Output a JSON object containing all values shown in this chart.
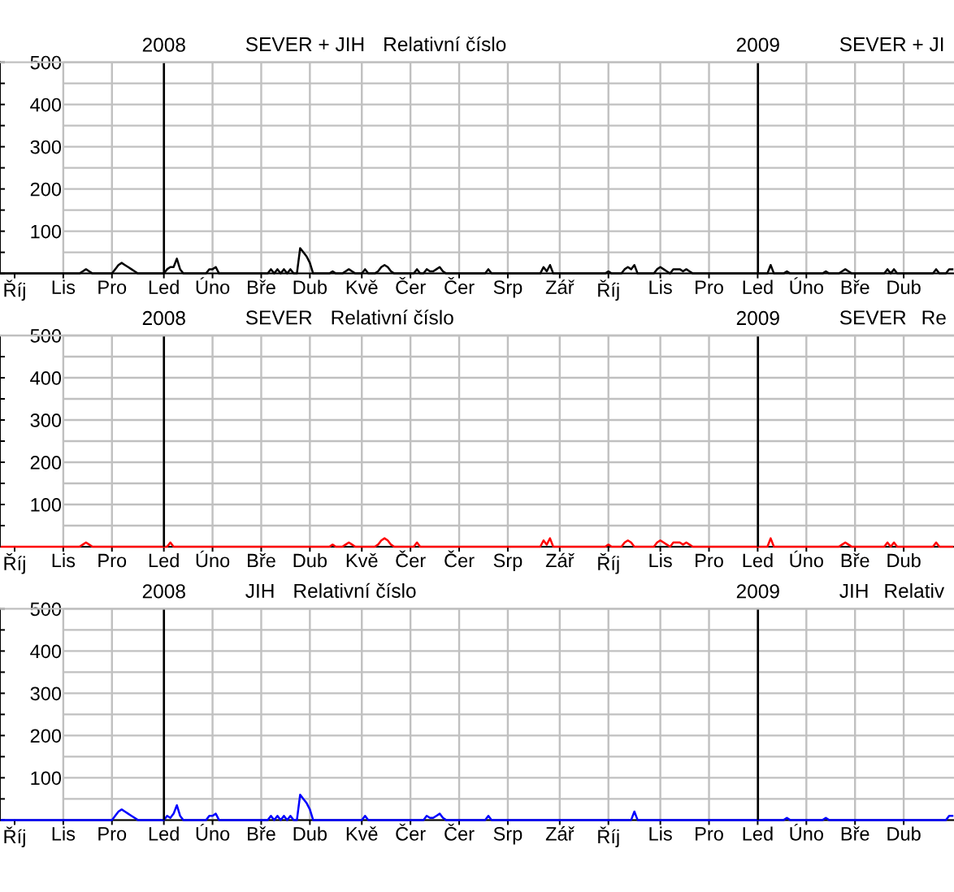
{
  "chart_data": [
    {
      "type": "line",
      "title": "SEVER + JIH",
      "subtitle": "Relativní číslo",
      "annotations": [
        "SEVER + JI"
      ],
      "color": "#000000",
      "categories": [
        null,
        null,
        null,
        null,
        "Říj",
        null,
        null,
        null,
        null,
        null,
        null,
        null,
        null,
        null,
        null,
        null,
        null,
        null,
        null,
        "Lis",
        null,
        null,
        null,
        null,
        null,
        null,
        null,
        null,
        null,
        null,
        null,
        null,
        null,
        null,
        "Pro",
        null,
        null,
        null,
        null,
        null,
        null,
        null,
        null,
        null,
        null,
        null,
        null,
        null,
        null,
        null,
        "Led",
        null,
        null,
        null,
        null,
        null,
        null,
        null,
        null,
        null,
        null,
        null,
        null,
        null,
        null,
        "Úno",
        null,
        null,
        null,
        null,
        null,
        null,
        null,
        null,
        null,
        null,
        null,
        null,
        null,
        null,
        "Bře",
        null,
        null,
        null,
        null,
        null,
        null,
        null,
        null,
        null,
        null,
        null,
        null,
        null,
        null,
        "Dub",
        null,
        null,
        null,
        null,
        null,
        null,
        null,
        null,
        null,
        null,
        null,
        null,
        null,
        null,
        null,
        "Kvě",
        null,
        null,
        null,
        null,
        null,
        null,
        null,
        null,
        null,
        null,
        null,
        null,
        null,
        null,
        "Čer",
        null,
        null,
        null,
        null,
        null,
        null,
        null,
        null,
        null,
        null,
        null,
        null,
        null,
        null,
        "Čer",
        null,
        null,
        null,
        null,
        null,
        null,
        null,
        null,
        null,
        null,
        null,
        null,
        null,
        null,
        "Srp",
        null,
        null,
        null,
        null,
        null,
        null,
        null,
        null,
        null,
        null,
        null,
        null,
        null,
        null,
        null,
        "Zář",
        null,
        null,
        null,
        null,
        null,
        null,
        null,
        null,
        null,
        null,
        null,
        null,
        null,
        null,
        "Říj",
        null,
        null,
        null,
        null,
        null,
        null,
        null,
        null,
        null,
        null,
        null,
        null,
        null,
        null,
        null,
        "Lis",
        null,
        null,
        null,
        null,
        null,
        null,
        null,
        null,
        null,
        null,
        null,
        null,
        null,
        null,
        "Pro",
        null,
        null,
        null,
        null,
        null,
        null,
        null,
        null,
        null,
        null,
        null,
        null,
        null,
        null,
        "Led",
        null,
        null,
        null,
        null,
        null,
        null,
        null,
        null,
        null,
        null,
        null,
        null,
        null,
        null,
        "Úno",
        null,
        null,
        null,
        null,
        null,
        null,
        null,
        null,
        null,
        null,
        null,
        null,
        null,
        null,
        "Bře",
        null,
        null,
        null,
        null,
        null,
        null,
        null,
        null,
        null,
        null,
        null,
        null,
        null,
        null,
        "Dub",
        null,
        null,
        null,
        null,
        null,
        null,
        null,
        null,
        null,
        null,
        null,
        null,
        null,
        null,
        null
      ],
      "values": [
        0,
        0,
        0,
        0,
        0,
        0,
        0,
        0,
        0,
        0,
        0,
        0,
        0,
        0,
        0,
        0,
        0,
        0,
        0,
        0,
        0,
        0,
        0,
        0,
        0,
        5,
        10,
        5,
        0,
        0,
        0,
        0,
        0,
        0,
        0,
        10,
        20,
        25,
        20,
        15,
        10,
        5,
        0,
        0,
        0,
        0,
        0,
        0,
        0,
        0,
        0,
        10,
        15,
        15,
        35,
        10,
        0,
        0,
        0,
        0,
        0,
        0,
        0,
        0,
        10,
        10,
        15,
        0,
        0,
        0,
        0,
        0,
        0,
        0,
        0,
        0,
        0,
        0,
        0,
        0,
        0,
        0,
        0,
        10,
        0,
        10,
        0,
        10,
        0,
        10,
        0,
        0,
        60,
        50,
        40,
        25,
        0,
        0,
        0,
        0,
        0,
        0,
        5,
        0,
        0,
        0,
        5,
        10,
        5,
        0,
        0,
        0,
        10,
        0,
        0,
        0,
        5,
        15,
        20,
        15,
        5,
        0,
        0,
        0,
        0,
        0,
        0,
        0,
        10,
        0,
        0,
        10,
        5,
        5,
        10,
        15,
        5,
        0,
        0,
        0,
        0,
        0,
        0,
        0,
        0,
        0,
        0,
        0,
        0,
        0,
        10,
        0,
        0,
        0,
        0,
        0,
        0,
        0,
        0,
        0,
        0,
        0,
        0,
        0,
        0,
        0,
        0,
        15,
        5,
        20,
        0,
        0,
        0,
        0,
        0,
        0,
        0,
        0,
        0,
        0,
        0,
        0,
        0,
        0,
        0,
        0,
        0,
        5,
        0,
        0,
        0,
        0,
        10,
        15,
        10,
        20,
        0,
        0,
        0,
        0,
        0,
        0,
        10,
        15,
        10,
        5,
        0,
        10,
        10,
        10,
        5,
        10,
        5,
        0,
        0,
        0,
        0,
        0,
        0,
        0,
        0,
        0,
        0,
        0,
        0,
        0,
        0,
        0,
        0,
        0,
        0,
        0,
        0,
        0,
        0,
        0,
        0,
        20,
        0,
        0,
        0,
        0,
        5,
        0,
        0,
        0,
        0,
        0,
        0,
        0,
        0,
        0,
        0,
        0,
        5,
        0,
        0,
        0,
        0,
        5,
        10,
        5,
        0,
        0,
        0,
        0,
        0,
        0,
        0,
        0,
        0,
        0,
        0,
        10,
        0,
        10,
        0,
        0,
        0,
        0,
        0,
        0,
        0,
        0,
        0,
        0,
        0,
        0,
        10,
        0,
        0,
        0,
        10,
        10
      ],
      "ylim": [
        0,
        500
      ],
      "yticks": [
        {
          "value": 0,
          "label": null
        },
        {
          "value": 50,
          "label": null
        },
        100,
        {
          "value": 150,
          "label": null
        },
        200,
        {
          "value": 250,
          "label": null
        },
        300,
        {
          "value": 350,
          "label": null
        },
        400,
        {
          "value": 450,
          "label": null
        },
        500
      ],
      "x2lim": [
        2007.724,
        2009.33
      ],
      "x2ticks": [
        2008,
        2009
      ],
      "grid": true
    },
    {
      "type": "line",
      "title": "SEVER",
      "subtitle": "Relativní číslo",
      "annotations": [
        "SEVER",
        "Re"
      ],
      "color": "#ff0000",
      "categories": [
        null,
        null,
        null,
        null,
        "Říj",
        null,
        null,
        null,
        null,
        null,
        null,
        null,
        null,
        null,
        null,
        null,
        null,
        null,
        null,
        "Lis",
        null,
        null,
        null,
        null,
        null,
        null,
        null,
        null,
        null,
        null,
        null,
        null,
        null,
        null,
        "Pro",
        null,
        null,
        null,
        null,
        null,
        null,
        null,
        null,
        null,
        null,
        null,
        null,
        null,
        null,
        null,
        "Led",
        null,
        null,
        null,
        null,
        null,
        null,
        null,
        null,
        null,
        null,
        null,
        null,
        null,
        null,
        "Úno",
        null,
        null,
        null,
        null,
        null,
        null,
        null,
        null,
        null,
        null,
        null,
        null,
        null,
        null,
        "Bře",
        null,
        null,
        null,
        null,
        null,
        null,
        null,
        null,
        null,
        null,
        null,
        null,
        null,
        null,
        "Dub",
        null,
        null,
        null,
        null,
        null,
        null,
        null,
        null,
        null,
        null,
        null,
        null,
        null,
        null,
        null,
        "Kvě",
        null,
        null,
        null,
        null,
        null,
        null,
        null,
        null,
        null,
        null,
        null,
        null,
        null,
        null,
        "Čer",
        null,
        null,
        null,
        null,
        null,
        null,
        null,
        null,
        null,
        null,
        null,
        null,
        null,
        null,
        "Čer",
        null,
        null,
        null,
        null,
        null,
        null,
        null,
        null,
        null,
        null,
        null,
        null,
        null,
        null,
        "Srp",
        null,
        null,
        null,
        null,
        null,
        null,
        null,
        null,
        null,
        null,
        null,
        null,
        null,
        null,
        null,
        "Zář",
        null,
        null,
        null,
        null,
        null,
        null,
        null,
        null,
        null,
        null,
        null,
        null,
        null,
        null,
        "Říj",
        null,
        null,
        null,
        null,
        null,
        null,
        null,
        null,
        null,
        null,
        null,
        null,
        null,
        null,
        null,
        "Lis",
        null,
        null,
        null,
        null,
        null,
        null,
        null,
        null,
        null,
        null,
        null,
        null,
        null,
        null,
        "Pro",
        null,
        null,
        null,
        null,
        null,
        null,
        null,
        null,
        null,
        null,
        null,
        null,
        null,
        null,
        "Led",
        null,
        null,
        null,
        null,
        null,
        null,
        null,
        null,
        null,
        null,
        null,
        null,
        null,
        null,
        "Úno",
        null,
        null,
        null,
        null,
        null,
        null,
        null,
        null,
        null,
        null,
        null,
        null,
        null,
        null,
        "Bře",
        null,
        null,
        null,
        null,
        null,
        null,
        null,
        null,
        null,
        null,
        null,
        null,
        null,
        null,
        "Dub",
        null,
        null,
        null,
        null,
        null,
        null,
        null,
        null,
        null,
        null,
        null,
        null,
        null,
        null,
        null
      ],
      "values": [
        0,
        0,
        0,
        0,
        0,
        0,
        0,
        0,
        0,
        0,
        0,
        0,
        0,
        0,
        0,
        0,
        0,
        0,
        0,
        0,
        0,
        0,
        0,
        0,
        0,
        5,
        10,
        5,
        0,
        0,
        0,
        0,
        0,
        0,
        0,
        0,
        0,
        0,
        0,
        0,
        0,
        0,
        0,
        0,
        0,
        0,
        0,
        0,
        0,
        0,
        0,
        0,
        10,
        0,
        0,
        0,
        0,
        0,
        0,
        0,
        0,
        0,
        0,
        0,
        0,
        0,
        0,
        0,
        0,
        0,
        0,
        0,
        0,
        0,
        0,
        0,
        0,
        0,
        0,
        0,
        0,
        0,
        0,
        0,
        0,
        0,
        0,
        0,
        0,
        0,
        0,
        0,
        0,
        0,
        0,
        0,
        0,
        0,
        0,
        0,
        0,
        0,
        5,
        0,
        0,
        0,
        5,
        10,
        5,
        0,
        0,
        0,
        0,
        0,
        0,
        0,
        5,
        15,
        20,
        15,
        5,
        0,
        0,
        0,
        0,
        0,
        0,
        0,
        10,
        0,
        0,
        0,
        0,
        0,
        0,
        0,
        0,
        0,
        0,
        0,
        0,
        0,
        0,
        0,
        0,
        0,
        0,
        0,
        0,
        0,
        0,
        0,
        0,
        0,
        0,
        0,
        0,
        0,
        0,
        0,
        0,
        0,
        0,
        0,
        0,
        0,
        0,
        15,
        5,
        20,
        0,
        0,
        0,
        0,
        0,
        0,
        0,
        0,
        0,
        0,
        0,
        0,
        0,
        0,
        0,
        0,
        0,
        5,
        0,
        0,
        0,
        0,
        10,
        15,
        10,
        0,
        0,
        0,
        0,
        0,
        0,
        0,
        10,
        15,
        10,
        5,
        0,
        10,
        10,
        10,
        5,
        10,
        5,
        0,
        0,
        0,
        0,
        0,
        0,
        0,
        0,
        0,
        0,
        0,
        0,
        0,
        0,
        0,
        0,
        0,
        0,
        0,
        0,
        0,
        0,
        0,
        0,
        20,
        0,
        0,
        0,
        0,
        0,
        0,
        0,
        0,
        0,
        0,
        0,
        0,
        0,
        0,
        0,
        0,
        0,
        0,
        0,
        0,
        0,
        5,
        10,
        5,
        0,
        0,
        0,
        0,
        0,
        0,
        0,
        0,
        0,
        0,
        0,
        10,
        0,
        10,
        0,
        0,
        0,
        0,
        0,
        0,
        0,
        0,
        0,
        0,
        0,
        0,
        10,
        0,
        0,
        0,
        0,
        0
      ],
      "ylim": [
        0,
        500
      ],
      "yticks": [
        {
          "value": 0,
          "label": null
        },
        {
          "value": 50,
          "label": null
        },
        100,
        {
          "value": 150,
          "label": null
        },
        200,
        {
          "value": 250,
          "label": null
        },
        300,
        {
          "value": 350,
          "label": null
        },
        400,
        {
          "value": 450,
          "label": null
        },
        500
      ],
      "x2lim": [
        2007.724,
        2009.33
      ],
      "x2ticks": [
        2008,
        2009
      ],
      "grid": true
    },
    {
      "type": "line",
      "title": "JIH",
      "subtitle": "Relativní číslo",
      "annotations": [
        "JIH",
        "Relativ"
      ],
      "color": "#0000ff",
      "categories": [
        null,
        null,
        null,
        null,
        "Říj",
        null,
        null,
        null,
        null,
        null,
        null,
        null,
        null,
        null,
        null,
        null,
        null,
        null,
        null,
        "Lis",
        null,
        null,
        null,
        null,
        null,
        null,
        null,
        null,
        null,
        null,
        null,
        null,
        null,
        null,
        "Pro",
        null,
        null,
        null,
        null,
        null,
        null,
        null,
        null,
        null,
        null,
        null,
        null,
        null,
        null,
        null,
        "Led",
        null,
        null,
        null,
        null,
        null,
        null,
        null,
        null,
        null,
        null,
        null,
        null,
        null,
        null,
        "Úno",
        null,
        null,
        null,
        null,
        null,
        null,
        null,
        null,
        null,
        null,
        null,
        null,
        null,
        null,
        "Bře",
        null,
        null,
        null,
        null,
        null,
        null,
        null,
        null,
        null,
        null,
        null,
        null,
        null,
        null,
        "Dub",
        null,
        null,
        null,
        null,
        null,
        null,
        null,
        null,
        null,
        null,
        null,
        null,
        null,
        null,
        null,
        "Kvě",
        null,
        null,
        null,
        null,
        null,
        null,
        null,
        null,
        null,
        null,
        null,
        null,
        null,
        null,
        "Čer",
        null,
        null,
        null,
        null,
        null,
        null,
        null,
        null,
        null,
        null,
        null,
        null,
        null,
        null,
        "Čer",
        null,
        null,
        null,
        null,
        null,
        null,
        null,
        null,
        null,
        null,
        null,
        null,
        null,
        null,
        "Srp",
        null,
        null,
        null,
        null,
        null,
        null,
        null,
        null,
        null,
        null,
        null,
        null,
        null,
        null,
        null,
        "Zář",
        null,
        null,
        null,
        null,
        null,
        null,
        null,
        null,
        null,
        null,
        null,
        null,
        null,
        null,
        "Říj",
        null,
        null,
        null,
        null,
        null,
        null,
        null,
        null,
        null,
        null,
        null,
        null,
        null,
        null,
        null,
        "Lis",
        null,
        null,
        null,
        null,
        null,
        null,
        null,
        null,
        null,
        null,
        null,
        null,
        null,
        null,
        "Pro",
        null,
        null,
        null,
        null,
        null,
        null,
        null,
        null,
        null,
        null,
        null,
        null,
        null,
        null,
        "Led",
        null,
        null,
        null,
        null,
        null,
        null,
        null,
        null,
        null,
        null,
        null,
        null,
        null,
        null,
        "Úno",
        null,
        null,
        null,
        null,
        null,
        null,
        null,
        null,
        null,
        null,
        null,
        null,
        null,
        null,
        "Bře",
        null,
        null,
        null,
        null,
        null,
        null,
        null,
        null,
        null,
        null,
        null,
        null,
        null,
        null,
        "Dub",
        null,
        null,
        null,
        null,
        null,
        null,
        null,
        null,
        null,
        null,
        null,
        null,
        null,
        null,
        null
      ],
      "values": [
        0,
        0,
        0,
        0,
        0,
        0,
        0,
        0,
        0,
        0,
        0,
        0,
        0,
        0,
        0,
        0,
        0,
        0,
        0,
        0,
        0,
        0,
        0,
        0,
        0,
        0,
        0,
        0,
        0,
        0,
        0,
        0,
        0,
        0,
        0,
        10,
        20,
        25,
        20,
        15,
        10,
        5,
        0,
        0,
        0,
        0,
        0,
        0,
        0,
        0,
        0,
        10,
        5,
        15,
        35,
        10,
        0,
        0,
        0,
        0,
        0,
        0,
        0,
        0,
        10,
        10,
        15,
        0,
        0,
        0,
        0,
        0,
        0,
        0,
        0,
        0,
        0,
        0,
        0,
        0,
        0,
        0,
        0,
        10,
        0,
        10,
        0,
        10,
        0,
        10,
        0,
        0,
        60,
        50,
        40,
        25,
        0,
        0,
        0,
        0,
        0,
        0,
        0,
        0,
        0,
        0,
        0,
        0,
        0,
        0,
        0,
        0,
        10,
        0,
        0,
        0,
        0,
        0,
        0,
        0,
        0,
        0,
        0,
        0,
        0,
        0,
        0,
        0,
        0,
        0,
        0,
        10,
        5,
        5,
        10,
        15,
        5,
        0,
        0,
        0,
        0,
        0,
        0,
        0,
        0,
        0,
        0,
        0,
        0,
        0,
        10,
        0,
        0,
        0,
        0,
        0,
        0,
        0,
        0,
        0,
        0,
        0,
        0,
        0,
        0,
        0,
        0,
        0,
        0,
        0,
        0,
        0,
        0,
        0,
        0,
        0,
        0,
        0,
        0,
        0,
        0,
        0,
        0,
        0,
        0,
        0,
        0,
        0,
        0,
        0,
        0,
        0,
        0,
        0,
        0,
        20,
        0,
        0,
        0,
        0,
        0,
        0,
        0,
        0,
        0,
        0,
        0,
        0,
        0,
        0,
        0,
        0,
        0,
        0,
        0,
        0,
        0,
        0,
        0,
        0,
        0,
        0,
        0,
        0,
        0,
        0,
        0,
        0,
        0,
        0,
        0,
        0,
        0,
        0,
        0,
        0,
        0,
        0,
        0,
        0,
        0,
        0,
        5,
        0,
        0,
        0,
        0,
        0,
        0,
        0,
        0,
        0,
        0,
        0,
        5,
        0,
        0,
        0,
        0,
        0,
        0,
        0,
        0,
        0,
        0,
        0,
        0,
        0,
        0,
        0,
        0,
        0,
        0,
        0,
        0,
        0,
        0,
        0,
        0,
        0,
        0,
        0,
        0,
        0,
        0,
        0,
        0,
        0,
        0,
        0,
        0,
        0,
        10,
        10
      ],
      "ylim": [
        0,
        500
      ],
      "yticks": [
        {
          "value": 0,
          "label": null
        },
        {
          "value": 50,
          "label": null
        },
        100,
        {
          "value": 150,
          "label": null
        },
        200,
        {
          "value": 250,
          "label": null
        },
        300,
        {
          "value": 350,
          "label": null
        },
        400,
        {
          "value": 450,
          "label": null
        },
        500
      ],
      "x2lim": [
        2007.724,
        2009.33
      ],
      "x2ticks": [
        2008,
        2009
      ],
      "grid": true
    }
  ]
}
